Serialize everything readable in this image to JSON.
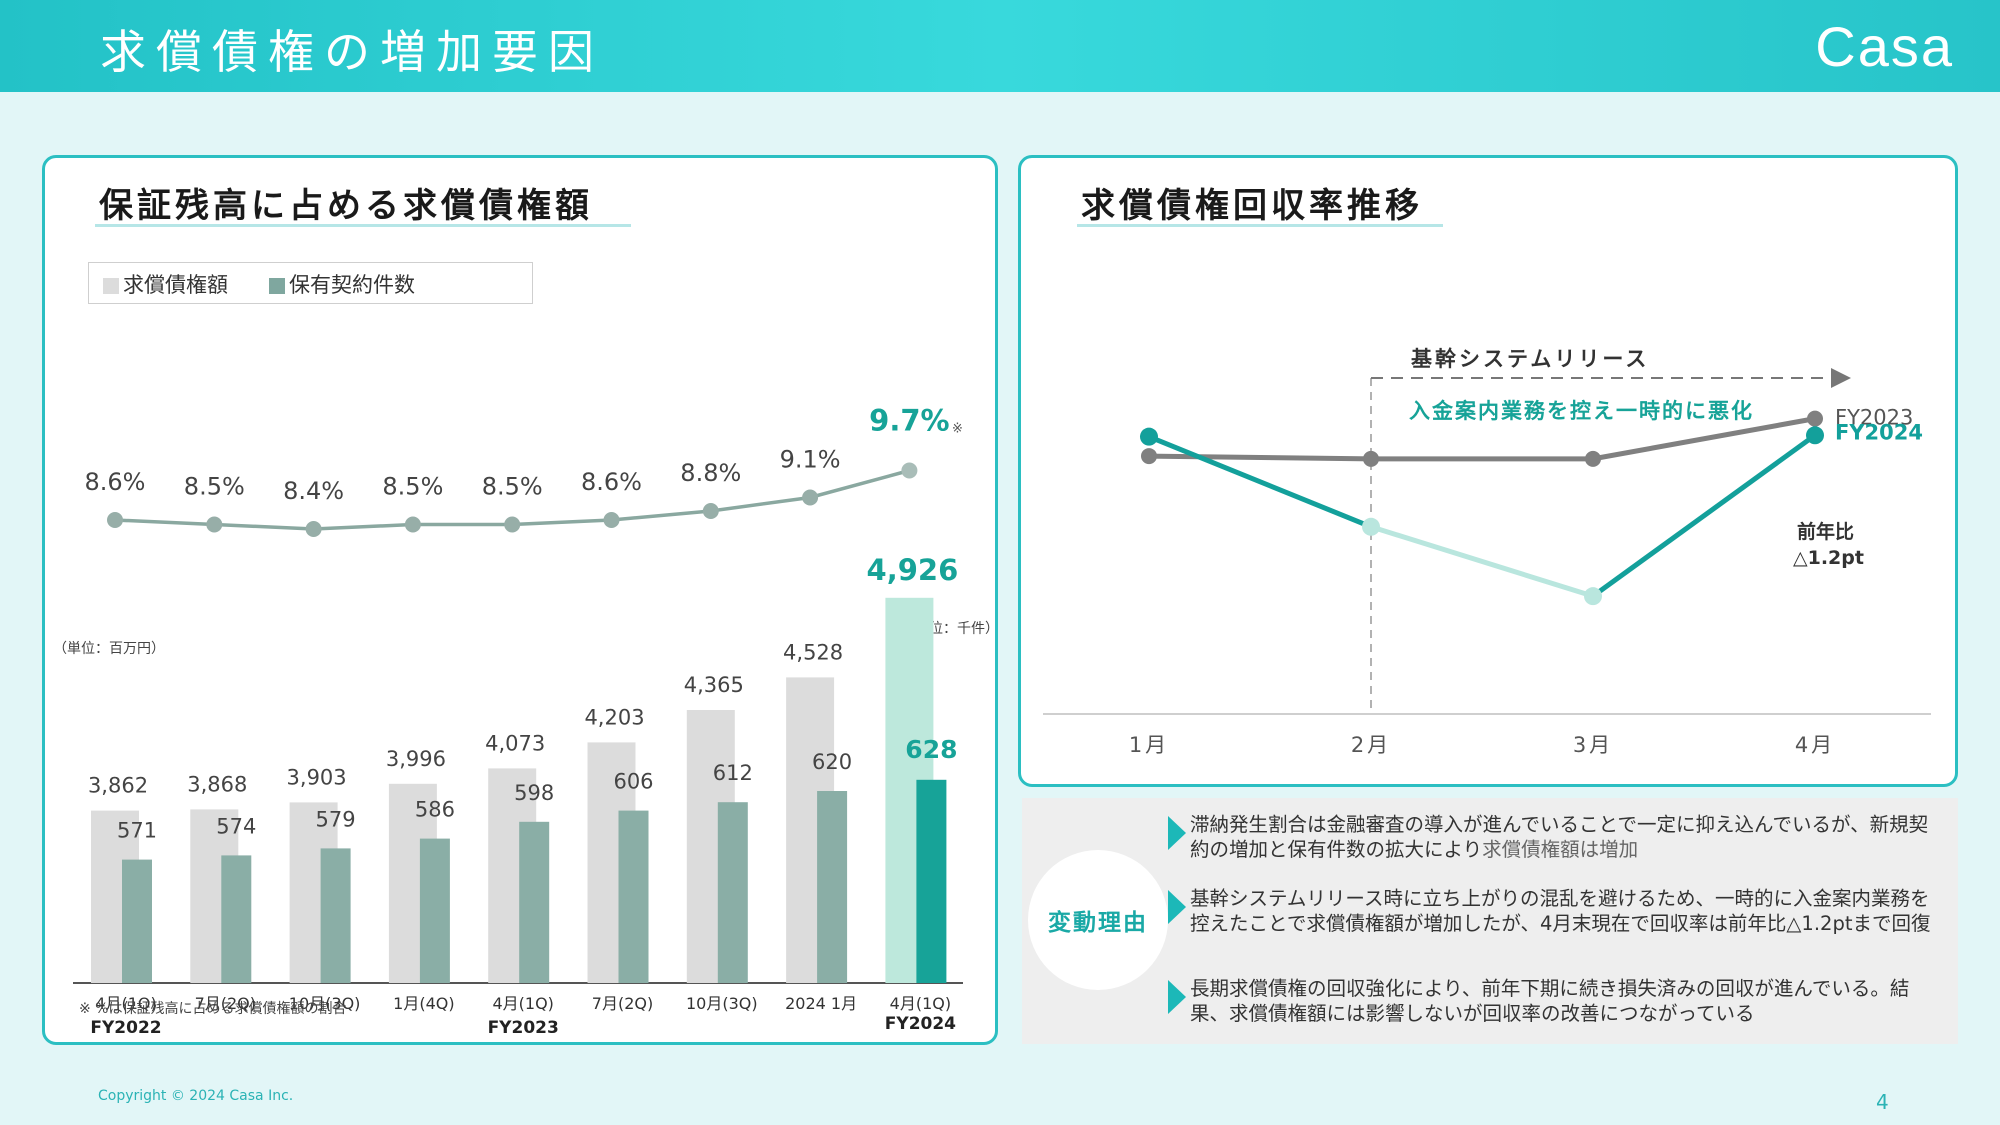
{
  "header": {
    "title": "求償債権の増加要因",
    "logo": "Casa"
  },
  "left_panel": {
    "title": "保証残高に占める求償債権額",
    "legend": {
      "series1": "求償債権額",
      "series2": "保有契約件数"
    },
    "unit_left": "（単位：百万円）",
    "unit_right": "（単位：千件）",
    "footnote": "※ %は保証残高に占める求償債権額の割合",
    "rate_mark": "※"
  },
  "right_panel": {
    "title": "求償債権回収率推移",
    "annotation_title": "基幹システムリリース",
    "annotation_sub": "入金案内業務を控え一時的に悪化",
    "yoy_label": "前年比",
    "yoy_value": "△1.2pt"
  },
  "reasons": {
    "label": "変動理由",
    "items": [
      {
        "text": "滞納発生割合は金融審査の導入が進んでいることで一定に抑え込んでいるが、新規契約の増加と保有件数の拡大により",
        "highlight": "求償債権額は増加"
      },
      {
        "text": "基幹システムリリース時に立ち上がりの混乱を避けるため、一時的に入金案内業務を控えたことで求償債権額が増加したが、4月末現在で回収率は前年比△1.2ptまで回復",
        "highlight": ""
      },
      {
        "text": "長期求償債権の回収強化により、前年下期に続き損失済みの回収が進んでいる。結果、求償債権額には影響しないが回収率の改善につながっている",
        "highlight": ""
      }
    ]
  },
  "footer": {
    "copyright": "Copyright © 2024 Casa Inc.",
    "page": "4"
  },
  "chart_data": [
    {
      "type": "bar",
      "title": "保証残高に占める求償債権額",
      "categories": [
        "4月(1Q)",
        "7月(2Q)",
        "10月(3Q)",
        "1月(4Q)",
        "4月(1Q)",
        "7月(2Q)",
        "10月(3Q)",
        "2024 1月",
        "4月(1Q)"
      ],
      "fiscal_groups": [
        {
          "label": "FY2022",
          "index": 0
        },
        {
          "label": "FY2023",
          "index": 4
        },
        {
          "label": "FY2024",
          "index": 8
        }
      ],
      "series": [
        {
          "name": "求償債権額",
          "values": [
            3862,
            3868,
            3903,
            3996,
            4073,
            4203,
            4365,
            4528,
            4926
          ],
          "labels": [
            "3,862",
            "3,868",
            "3,903",
            "3,996",
            "4,073",
            "4,203",
            "4,365",
            "4,528",
            "4,926"
          ]
        },
        {
          "name": "保有契約件数",
          "values": [
            571,
            574,
            579,
            586,
            598,
            606,
            612,
            620,
            628
          ],
          "labels": [
            "571",
            "574",
            "579",
            "586",
            "598",
            "606",
            "612",
            "620",
            "628"
          ]
        },
        {
          "values": [
            8.6,
            8.5,
            8.4,
            8.5,
            8.5,
            8.6,
            8.8,
            9.1,
            9.7
          ],
          "labels": [
            "8.6%",
            "8.5%",
            "8.4%",
            "8.5%",
            "8.5%",
            "8.6%",
            "8.8%",
            "9.1%",
            "9.7%"
          ]
        }
      ],
      "colors": {
        "bar1": "#dcdcdc",
        "bar2": "#8aaea6",
        "bar1_highlight": "#bde8dc",
        "bar2_highlight": "#17a398",
        "line": "#8aa8a0",
        "accent": "#17a398"
      }
    },
    {
      "type": "line",
      "title": "求償債権回収率推移",
      "categories": [
        "1月",
        "2月",
        "3月",
        "4月"
      ],
      "series": [
        {
          "name": "FY2023",
          "values": [
            59.6,
            59.4,
            59.4,
            62.3
          ]
        },
        {
          "name": "FY2024",
          "values": [
            61.0,
            54.5,
            49.5,
            61.1
          ]
        }
      ],
      "ylim": [
        41.0,
        71.0
      ],
      "colors": {
        "fy2023": "#808080",
        "fy2024": "#13a09b",
        "fy2024_dip": "#b9e6de"
      }
    }
  ]
}
